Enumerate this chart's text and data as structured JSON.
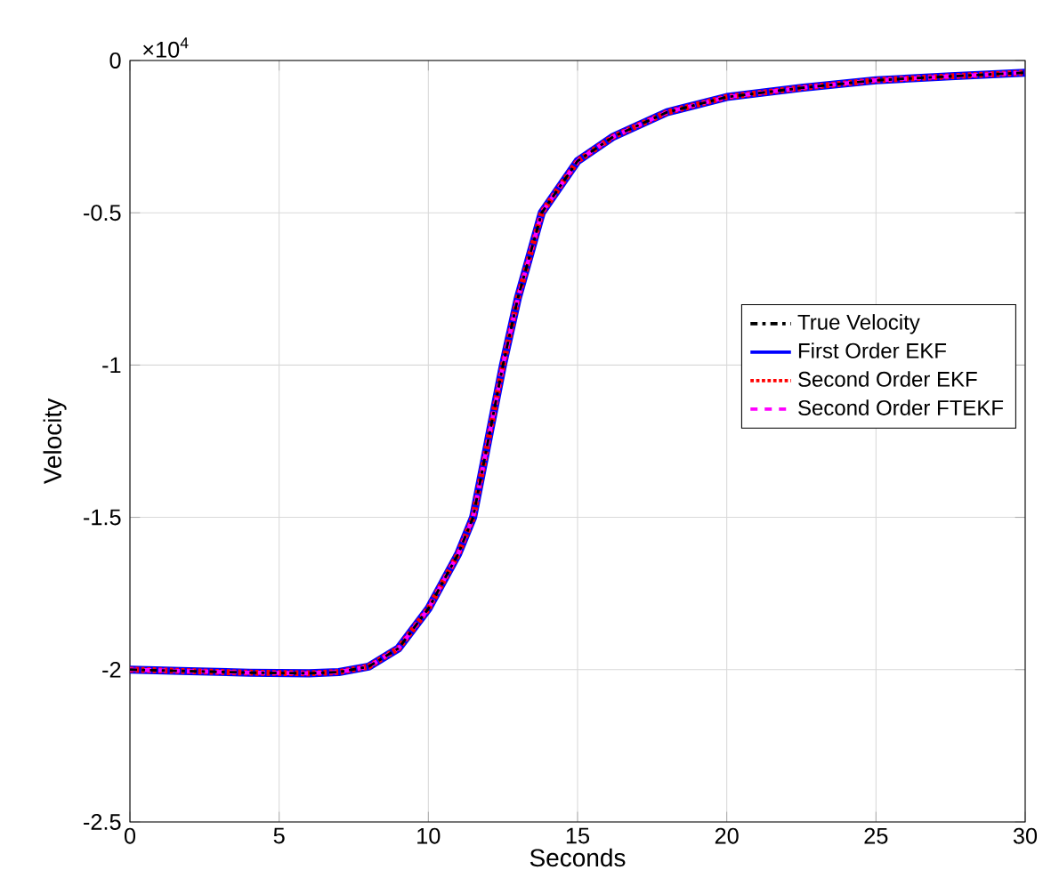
{
  "chart_data": {
    "type": "line",
    "xlabel": "Seconds",
    "ylabel": "Velocity",
    "annotations": [
      "×10$^{4}$"
    ],
    "x": [
      0,
      2,
      4,
      6,
      7,
      8,
      9,
      10,
      11,
      11.5,
      12,
      12.5,
      13,
      13.8,
      15,
      16.2,
      18,
      20,
      22.5,
      25,
      27.5,
      30
    ],
    "series": [
      {
        "name": "True Velocity",
        "color": "#000000",
        "line_style": "dashdot",
        "values": [
          -2.0,
          -2.005,
          -2.01,
          -2.012,
          -2.008,
          -1.99,
          -1.93,
          -1.8,
          -1.62,
          -1.5,
          -1.25,
          -1.0,
          -0.78,
          -0.5,
          -0.33,
          -0.25,
          -0.17,
          -0.12,
          -0.09,
          -0.065,
          -0.052,
          -0.04
        ]
      },
      {
        "name": "First Order EKF",
        "color": "#0000ff",
        "line_style": "solid",
        "values": [
          -2.0,
          -2.005,
          -2.01,
          -2.012,
          -2.008,
          -1.99,
          -1.93,
          -1.8,
          -1.62,
          -1.5,
          -1.25,
          -1.0,
          -0.78,
          -0.5,
          -0.33,
          -0.25,
          -0.17,
          -0.12,
          -0.09,
          -0.065,
          -0.052,
          -0.04
        ]
      },
      {
        "name": "Second Order EKF",
        "color": "#ff0000",
        "line_style": "dotted",
        "values": [
          -2.0,
          -2.005,
          -2.01,
          -2.012,
          -2.008,
          -1.99,
          -1.93,
          -1.8,
          -1.62,
          -1.5,
          -1.25,
          -1.0,
          -0.78,
          -0.5,
          -0.33,
          -0.25,
          -0.17,
          -0.12,
          -0.09,
          -0.065,
          -0.052,
          -0.04
        ]
      },
      {
        "name": "Second Order FTEKF",
        "color": "#ff00ff",
        "line_style": "dashed",
        "values": [
          -2.0,
          -2.005,
          -2.01,
          -2.012,
          -2.008,
          -1.99,
          -1.93,
          -1.8,
          -1.62,
          -1.5,
          -1.25,
          -1.0,
          -0.78,
          -0.5,
          -0.33,
          -0.25,
          -0.17,
          -0.12,
          -0.09,
          -0.065,
          -0.052,
          -0.04
        ]
      }
    ],
    "xlim": [
      0,
      30
    ],
    "xticks": [
      0,
      5,
      10,
      15,
      20,
      25,
      30
    ],
    "ylim": [
      -2.5,
      0
    ],
    "yticks": [
      -2.5,
      -2,
      -1.5,
      -1,
      -0.5,
      0
    ],
    "grid": true,
    "legend": "right",
    "marker": "none"
  }
}
